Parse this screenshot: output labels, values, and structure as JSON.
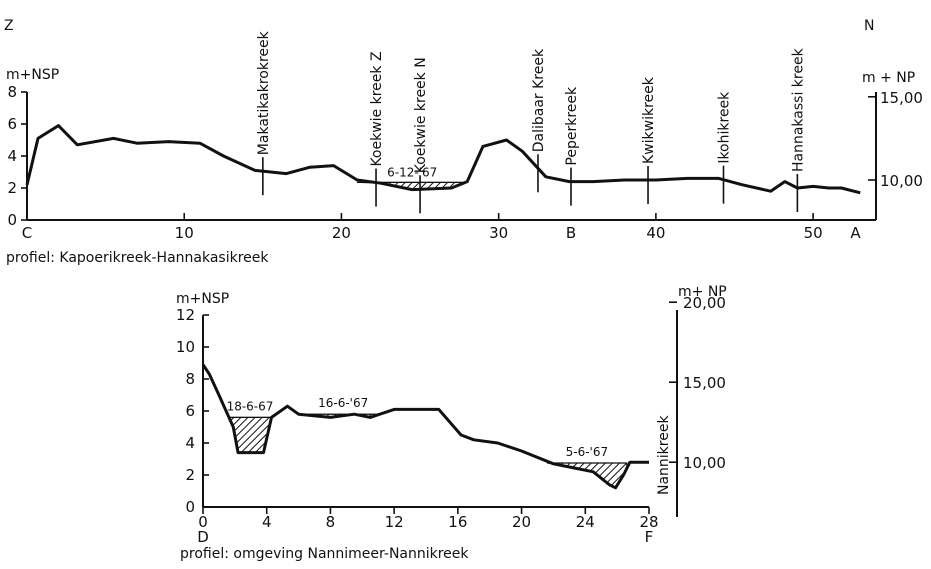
{
  "chart_data": [
    {
      "type": "line",
      "corner_left": "Z",
      "corner_right": "N",
      "ylabel_left": "m+NSP",
      "ylabel_right": "m + NP",
      "y_left_ticks": [
        "0",
        "2",
        "4",
        "6",
        "8"
      ],
      "ylim": [
        0,
        8
      ],
      "y_right_ticks": [
        {
          "label": "10,00",
          "y_nsp": 2.5
        },
        {
          "label": "15,00",
          "y_nsp": 7.7
        }
      ],
      "xlim": [
        0,
        54
      ],
      "x_ticks": [
        "10",
        "20",
        "30",
        "40",
        "50"
      ],
      "x_letters": [
        {
          "x": 0,
          "label": "C"
        },
        {
          "x": 34.6,
          "label": "B"
        },
        {
          "x": 52.7,
          "label": "A"
        }
      ],
      "caption": "profiel: Kapoerikreek-Hannakasikreek",
      "series": [
        {
          "x": [
            0,
            0.7,
            2.0,
            3.2,
            5.5,
            7.0,
            9.0,
            11.0,
            12.5,
            14.5,
            16.5,
            18.0,
            19.5,
            21.0,
            22.5,
            24.5,
            27.0,
            28.0,
            29.0,
            30.5,
            31.5,
            33.0,
            34.5,
            36.0,
            38.0,
            40.0,
            42.0,
            44.0,
            45.5,
            47.3,
            48.2,
            49.0,
            50.0,
            51.0,
            51.8,
            53.0
          ],
          "y": [
            2.2,
            5.1,
            5.9,
            4.7,
            5.1,
            4.8,
            4.9,
            4.8,
            4.0,
            3.1,
            2.9,
            3.3,
            3.4,
            2.5,
            2.3,
            1.9,
            2.0,
            2.4,
            4.6,
            5.0,
            4.3,
            2.7,
            2.4,
            2.4,
            2.5,
            2.5,
            2.6,
            2.6,
            2.2,
            1.8,
            2.4,
            2.0,
            2.1,
            2.0,
            2.0,
            1.7
          ]
        }
      ],
      "creeks": [
        {
          "name": "Makatikakrokreek",
          "x": 15.0
        },
        {
          "name": "Koekwie kreek Z",
          "x": 22.2
        },
        {
          "name": "Koekwie kreek N",
          "x": 25.0
        },
        {
          "name": "Dalibaar Kreek",
          "x": 32.5
        },
        {
          "name": "Peperkreek",
          "x": 34.6
        },
        {
          "name": "Kwikwikreek",
          "x": 39.5
        },
        {
          "name": "Ikohikreek",
          "x": 44.3
        },
        {
          "name": "Hannakassi kreek",
          "x": 49.0
        }
      ],
      "water_levels": [
        {
          "label": "6-12-'67",
          "x": [
            21.0,
            28.0
          ],
          "level": 2.35
        }
      ]
    },
    {
      "type": "line",
      "ylabel_left": "m+NSP",
      "ylabel_right": "m+ NP",
      "y_left_ticks": [
        "0",
        "2",
        "4",
        "6",
        "8",
        "10",
        "12"
      ],
      "ylim": [
        0,
        12
      ],
      "y_right_ticks": [
        {
          "label": "10,00",
          "y_nsp": 2.8
        },
        {
          "label": "15,00",
          "y_nsp": 7.8
        },
        {
          "label": "20,00",
          "y_nsp": 12.8
        }
      ],
      "xlim": [
        0,
        28
      ],
      "x_ticks": [
        "0",
        "4",
        "8",
        "12",
        "16",
        "20",
        "24",
        "28"
      ],
      "x_letters": [
        {
          "x": 0,
          "label": "D"
        },
        {
          "x": 28,
          "label": "F"
        }
      ],
      "vertical_label": "Nannikreek",
      "caption": "profiel: omgeving Nannimeer-Nannikreek",
      "series": [
        {
          "x": [
            0,
            0.4,
            1.0,
            1.9,
            2.2,
            3.8,
            4.3,
            5.3,
            6.0,
            8.0,
            9.5,
            10.5,
            12.0,
            14.8,
            15.5,
            16.2,
            17.0,
            18.5,
            20.0,
            22.0,
            23.0,
            24.5,
            25.5,
            25.9,
            26.4,
            26.8,
            28.0
          ],
          "y": [
            8.9,
            8.3,
            7.0,
            5.0,
            3.4,
            3.4,
            5.6,
            6.3,
            5.8,
            5.6,
            5.8,
            5.6,
            6.1,
            6.1,
            5.3,
            4.5,
            4.2,
            4.0,
            3.5,
            2.7,
            2.5,
            2.2,
            1.4,
            1.2,
            2.0,
            2.8,
            2.8
          ]
        }
      ],
      "water_levels": [
        {
          "label": "18-6-67",
          "x": [
            1.6,
            4.3
          ],
          "level": 5.6
        },
        {
          "label": "16-6-'67",
          "x": [
            6.6,
            11.0
          ],
          "level": 5.8
        },
        {
          "label": "5-6-'67",
          "x": [
            21.6,
            26.6
          ],
          "level": 2.75
        }
      ]
    }
  ]
}
